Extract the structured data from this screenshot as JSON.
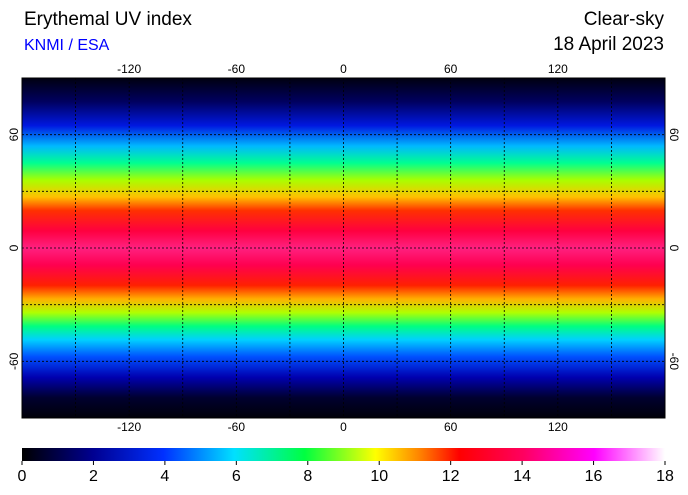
{
  "header": {
    "title": "Erythemal UV index",
    "source": "KNMI / ESA",
    "condition": "Clear-sky",
    "date": "18 April 2023"
  },
  "map": {
    "xlim": [
      -180,
      180
    ],
    "ylim": [
      -90,
      90
    ],
    "xticks": [
      -120,
      -60,
      0,
      60,
      120
    ],
    "yticks": [
      -60,
      0,
      60
    ]
  },
  "colorbar": {
    "lim": [
      0,
      18
    ],
    "ticks": [
      0,
      2,
      4,
      6,
      8,
      10,
      12,
      14,
      16,
      18
    ]
  }
}
